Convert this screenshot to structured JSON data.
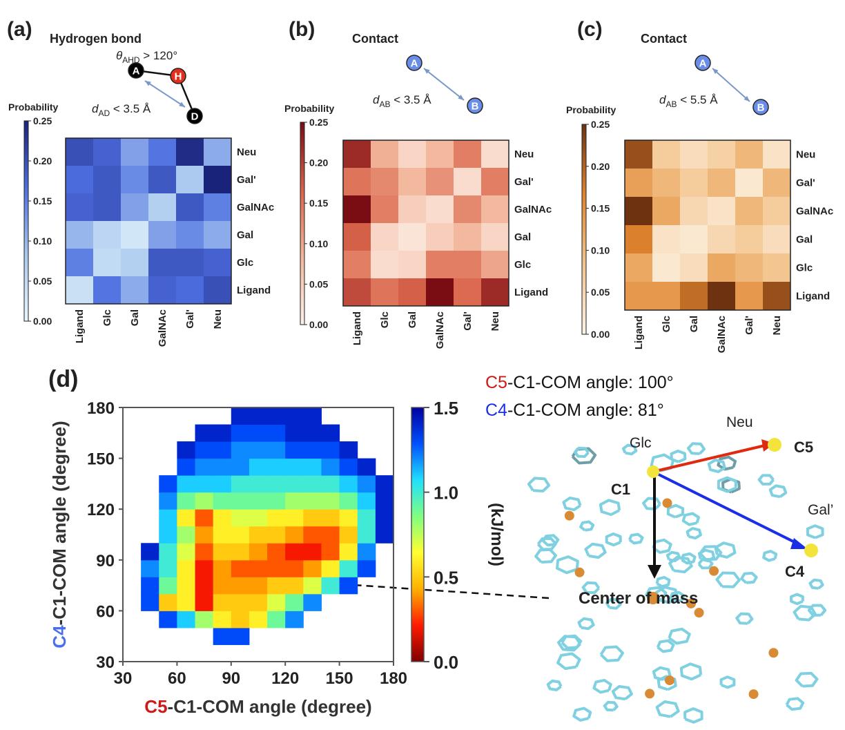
{
  "chart_data": [
    {
      "type": "heatmap",
      "panel": "(a)",
      "title": "Hydrogen bond",
      "colorbar_label": "Probability",
      "x_categories": [
        "Ligand",
        "Glc",
        "Gal",
        "GalNAc",
        "Gal'",
        "Neu"
      ],
      "y_categories": [
        "Neu",
        "Gal'",
        "GalNAc",
        "Gal",
        "Glc",
        "Ligand"
      ],
      "values": [
        [
          0.2,
          0.18,
          0.12,
          0.16,
          0.24,
          0.11
        ],
        [
          0.17,
          0.19,
          0.14,
          0.19,
          0.08,
          0.25
        ],
        [
          0.18,
          0.19,
          0.12,
          0.07,
          0.19,
          0.15
        ],
        [
          0.1,
          0.06,
          0.03,
          0.12,
          0.14,
          0.11
        ],
        [
          0.15,
          0.05,
          0.07,
          0.19,
          0.19,
          0.18
        ],
        [
          0.04,
          0.16,
          0.11,
          0.18,
          0.17,
          0.2
        ]
      ],
      "zlim": [
        0,
        0.25
      ],
      "zticks": [
        {
          "value": 0,
          "label": "0.00"
        },
        0.05,
        {
          "value": 0.1,
          "label": "0.10"
        },
        0.15,
        {
          "value": 0.2,
          "label": "0.20"
        },
        0.25
      ],
      "colors": [
        "#e8f7fb",
        "#a9c8ef",
        "#4d6ee0",
        "#1a237a"
      ],
      "scheme": {
        "nodes": [
          "A",
          "H",
          "D"
        ],
        "node_colors": [
          "#000000",
          "#e0301e",
          "#000000"
        ],
        "formulas": [
          {
            "symbol": "θ",
            "subscript": "AHD",
            "text": " > 120°"
          },
          {
            "symbol": "d",
            "subscript": "AD",
            "text": " < 3.5 Å"
          }
        ]
      }
    },
    {
      "type": "heatmap",
      "panel": "(b)",
      "title": "Contact",
      "colorbar_label": "Probability",
      "x_categories": [
        "Ligand",
        "Glc",
        "Gal",
        "GalNAc",
        "Gal'",
        "Neu"
      ],
      "y_categories": [
        "Neu",
        "Gal'",
        "GalNAc",
        "Gal",
        "Glc",
        "Ligand"
      ],
      "values": [
        [
          0.22,
          0.09,
          0.04,
          0.08,
          0.14,
          0.03
        ],
        [
          0.15,
          0.13,
          0.08,
          0.12,
          0.03,
          0.14
        ],
        [
          0.25,
          0.14,
          0.05,
          0.03,
          0.13,
          0.08
        ],
        [
          0.17,
          0.04,
          0.02,
          0.05,
          0.08,
          0.04
        ],
        [
          0.14,
          0.03,
          0.04,
          0.14,
          0.14,
          0.1
        ],
        [
          0.19,
          0.15,
          0.17,
          0.25,
          0.16,
          0.22
        ]
      ],
      "zlim": [
        0,
        0.25
      ],
      "zticks": [
        {
          "value": 0,
          "label": "0.00"
        },
        0.05,
        {
          "value": 0.1,
          "label": "0.10"
        },
        0.15,
        {
          "value": 0.2,
          "label": "0.20"
        },
        0.25
      ],
      "colors": [
        "#fdf1ea",
        "#f2b79c",
        "#d9634a",
        "#7a0c14"
      ],
      "scheme": {
        "nodes": [
          "A",
          "B"
        ],
        "node_colors": [
          "#6a8ee8",
          "#6a8ee8"
        ],
        "formulas": [
          {
            "symbol": "d",
            "subscript": "AB",
            "text": " < 3.5 Å"
          }
        ]
      }
    },
    {
      "type": "heatmap",
      "panel": "(c)",
      "title": "Contact",
      "colorbar_label": "Probability",
      "x_categories": [
        "Ligand",
        "Glc",
        "Gal",
        "GalNAc",
        "Gal'",
        "Neu"
      ],
      "y_categories": [
        "Neu",
        "Gal'",
        "GalNAc",
        "Gal",
        "Glc",
        "Ligand"
      ],
      "values": [
        [
          0.22,
          0.07,
          0.04,
          0.06,
          0.1,
          0.03
        ],
        [
          0.13,
          0.1,
          0.07,
          0.1,
          0.02,
          0.1
        ],
        [
          0.25,
          0.12,
          0.05,
          0.03,
          0.1,
          0.07
        ],
        [
          0.17,
          0.03,
          0.02,
          0.05,
          0.07,
          0.04
        ],
        [
          0.12,
          0.02,
          0.04,
          0.12,
          0.1,
          0.08
        ],
        [
          0.14,
          0.14,
          0.19,
          0.25,
          0.14,
          0.22
        ]
      ],
      "zlim": [
        0,
        0.25
      ],
      "zticks": [
        {
          "value": 0,
          "label": "0.00"
        },
        0.05,
        {
          "value": 0.1,
          "label": "0.10"
        },
        0.15,
        {
          "value": 0.2,
          "label": "0.20"
        },
        0.25
      ],
      "colors": [
        "#fdf3e6",
        "#f3c48d",
        "#e0842e",
        "#6e3210"
      ],
      "scheme": {
        "nodes": [
          "A",
          "B"
        ],
        "node_colors": [
          "#6a8ee8",
          "#6a8ee8"
        ],
        "formulas": [
          {
            "symbol": "d",
            "subscript": "AB",
            "text": " < 5.5 Å"
          }
        ]
      }
    },
    {
      "type": "histogram2d",
      "panel": "(d)",
      "xlabel": [
        {
          "text": "C5",
          "color": "#d01818"
        },
        {
          "text": "-C1-COM angle (degree)",
          "color": "#333333"
        }
      ],
      "ylabel": [
        {
          "text": "C4",
          "color": "#4a6ef0"
        },
        {
          "text": "-C1-COM angle (degree)",
          "color": "#333333"
        }
      ],
      "colorbar_label": "(kJ/mol)",
      "x_bins": [
        30,
        40,
        50,
        60,
        70,
        80,
        90,
        100,
        110,
        120,
        130,
        140,
        150,
        160,
        170,
        180
      ],
      "y_bins": [
        30,
        40,
        50,
        60,
        70,
        80,
        90,
        100,
        110,
        120,
        130,
        140,
        150,
        160,
        170,
        180
      ],
      "values": [
        [
          null,
          null,
          null,
          null,
          null,
          null,
          null,
          null,
          null,
          null,
          null,
          null,
          null,
          null,
          null
        ],
        [
          null,
          null,
          null,
          null,
          null,
          1.3,
          1.3,
          null,
          null,
          null,
          null,
          null,
          null,
          null,
          null
        ],
        [
          null,
          null,
          1.3,
          1.1,
          0.8,
          0.6,
          0.5,
          0.6,
          0.9,
          1.2,
          null,
          null,
          null,
          null,
          null
        ],
        [
          null,
          1.3,
          0.5,
          0.6,
          0.2,
          0.5,
          0.5,
          0.5,
          0.7,
          0.9,
          1.2,
          null,
          null,
          null,
          null
        ],
        [
          null,
          1.3,
          0.9,
          0.6,
          0.2,
          0.4,
          0.4,
          0.4,
          0.5,
          0.5,
          0.7,
          1.0,
          1.3,
          null,
          null
        ],
        [
          null,
          1.2,
          1.0,
          0.6,
          0.2,
          0.4,
          0.3,
          0.3,
          0.3,
          0.3,
          0.4,
          0.6,
          1.0,
          1.3,
          null
        ],
        [
          null,
          1.4,
          1.0,
          0.7,
          0.3,
          0.5,
          0.5,
          0.4,
          0.3,
          0.2,
          0.2,
          0.3,
          0.6,
          1.2,
          null
        ],
        [
          null,
          null,
          1.1,
          0.8,
          0.4,
          0.6,
          0.6,
          0.5,
          0.5,
          0.4,
          0.3,
          0.3,
          0.5,
          1.0,
          1.4
        ],
        [
          null,
          null,
          1.1,
          0.6,
          0.3,
          0.6,
          0.7,
          0.7,
          0.6,
          0.6,
          0.5,
          0.5,
          0.6,
          1.0,
          1.4
        ],
        [
          null,
          null,
          1.2,
          0.9,
          0.8,
          0.9,
          0.9,
          0.9,
          0.9,
          0.8,
          0.8,
          0.8,
          0.9,
          1.1,
          1.4
        ],
        [
          null,
          null,
          1.3,
          1.1,
          1.1,
          1.1,
          1.0,
          1.0,
          1.0,
          1.0,
          1.0,
          1.0,
          1.1,
          1.2,
          1.4
        ],
        [
          null,
          null,
          null,
          1.3,
          1.2,
          1.2,
          1.2,
          1.1,
          1.1,
          1.1,
          1.1,
          1.2,
          1.3,
          1.4,
          null
        ],
        [
          null,
          null,
          null,
          1.4,
          1.3,
          1.3,
          1.2,
          1.2,
          1.2,
          1.3,
          1.3,
          1.3,
          1.4,
          null,
          null
        ],
        [
          null,
          null,
          null,
          null,
          1.4,
          1.4,
          1.3,
          1.3,
          1.3,
          1.4,
          1.4,
          1.4,
          null,
          null,
          null
        ],
        [
          null,
          null,
          null,
          null,
          null,
          null,
          1.4,
          1.4,
          1.4,
          1.4,
          1.4,
          null,
          null,
          null,
          null
        ]
      ],
      "xlim": [
        30,
        180
      ],
      "xticks": [
        30,
        60,
        90,
        120,
        150,
        180
      ],
      "ylim": [
        30,
        180
      ],
      "yticks": [
        30,
        60,
        90,
        120,
        150,
        180
      ],
      "zlim": [
        0,
        1.5
      ],
      "zticks": [
        {
          "value": 0,
          "label": "0.0"
        },
        0.5,
        {
          "value": 1,
          "label": "1.0"
        },
        1.5
      ],
      "colors": [
        "#7f0000",
        "#ff1a00",
        "#ffb000",
        "#ffff30",
        "#80ff80",
        "#20e0ff",
        "#0050ff",
        "#00009f"
      ]
    }
  ],
  "molecule": {
    "angle_labels": [
      [
        {
          "text": "C5",
          "color": "#d01818"
        },
        {
          "text": "-C1-COM angle: 100°",
          "color": "#111111"
        }
      ],
      [
        {
          "text": "C4",
          "color": "#1a2ee8"
        },
        {
          "text": "-C1-COM angle: 81°",
          "color": "#111111"
        }
      ]
    ],
    "atoms": {
      "neu": "Neu",
      "c5": "C5",
      "glc": "Glc",
      "c1": "C1",
      "gal": "Gal’",
      "c4": "C4",
      "com": "Center of mass"
    }
  }
}
